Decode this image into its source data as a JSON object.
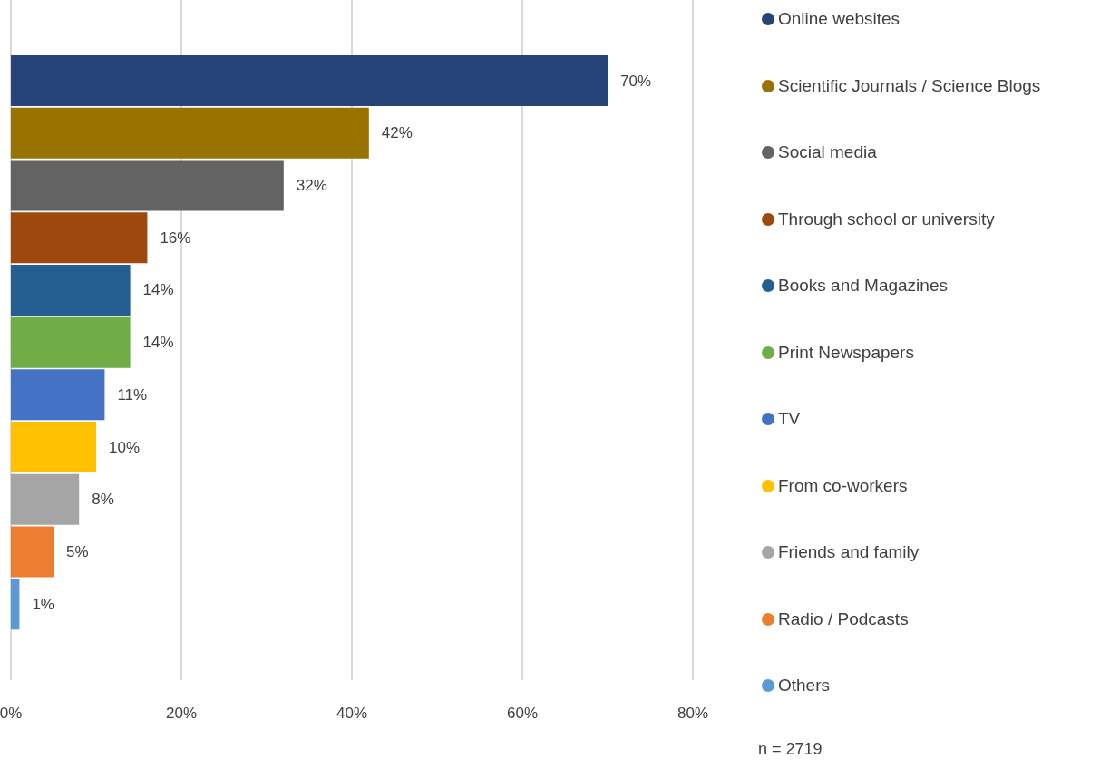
{
  "chart_data": {
    "type": "bar",
    "orientation": "horizontal",
    "stacked": true,
    "categories": [
      null,
      null,
      null,
      null,
      null,
      null,
      null,
      null,
      null,
      null,
      null
    ],
    "series": [
      {
        "name": "Online websites",
        "color": "#264478",
        "values": [
          70,
          null,
          null,
          null,
          null,
          null,
          null,
          null,
          null,
          null,
          null
        ],
        "value_labels": [
          "70%",
          null,
          null,
          null,
          null,
          null,
          null,
          null,
          null,
          null,
          null
        ]
      },
      {
        "name": "Scientific Journals / Science Blogs",
        "color": "#997300",
        "values": [
          null,
          42,
          null,
          null,
          null,
          null,
          null,
          null,
          null,
          null,
          null
        ],
        "value_labels": [
          null,
          "42%",
          null,
          null,
          null,
          null,
          null,
          null,
          null,
          null,
          null
        ]
      },
      {
        "name": "Social media",
        "color": "#636363",
        "values": [
          null,
          null,
          32,
          null,
          null,
          null,
          null,
          null,
          null,
          null,
          null
        ],
        "value_labels": [
          null,
          null,
          "32%",
          null,
          null,
          null,
          null,
          null,
          null,
          null,
          null
        ]
      },
      {
        "name": "Through school or university",
        "color": "#9e480e",
        "values": [
          null,
          null,
          null,
          16,
          null,
          null,
          null,
          null,
          null,
          null,
          null
        ],
        "value_labels": [
          null,
          null,
          null,
          "16%",
          null,
          null,
          null,
          null,
          null,
          null,
          null
        ]
      },
      {
        "name": "Books and Magazines",
        "color": "#255e91",
        "values": [
          null,
          null,
          null,
          null,
          14,
          null,
          null,
          null,
          null,
          null,
          null
        ],
        "value_labels": [
          null,
          null,
          null,
          null,
          "14%",
          null,
          null,
          null,
          null,
          null,
          null
        ]
      },
      {
        "name": "Print Newspapers",
        "color": "#70ad47",
        "values": [
          null,
          null,
          null,
          null,
          null,
          14,
          null,
          null,
          null,
          null,
          null
        ],
        "value_labels": [
          null,
          null,
          null,
          null,
          null,
          "14%",
          null,
          null,
          null,
          null,
          null
        ]
      },
      {
        "name": "TV",
        "color": "#4472c4",
        "values": [
          null,
          null,
          null,
          null,
          null,
          null,
          11,
          null,
          null,
          null,
          null
        ],
        "value_labels": [
          null,
          null,
          null,
          null,
          null,
          null,
          "11%",
          null,
          null,
          null,
          null
        ]
      },
      {
        "name": "From co-workers",
        "color": "#ffc000",
        "values": [
          null,
          null,
          null,
          null,
          null,
          null,
          null,
          10,
          null,
          null,
          null
        ],
        "value_labels": [
          null,
          null,
          null,
          null,
          null,
          null,
          null,
          "10%",
          null,
          null,
          null
        ]
      },
      {
        "name": "Friends and family",
        "color": "#a5a5a5",
        "values": [
          null,
          null,
          null,
          null,
          null,
          null,
          null,
          null,
          8,
          null,
          null
        ],
        "value_labels": [
          null,
          null,
          null,
          null,
          null,
          null,
          null,
          null,
          "8%",
          null,
          null
        ]
      },
      {
        "name": "Radio / Podcasts",
        "color": "#ed7d31",
        "values": [
          null,
          null,
          null,
          null,
          null,
          null,
          null,
          null,
          null,
          5,
          null
        ],
        "value_labels": [
          null,
          null,
          null,
          null,
          null,
          null,
          null,
          null,
          null,
          "5%",
          null
        ]
      },
      {
        "name": "Others",
        "color": "#5b9bd5",
        "values": [
          null,
          null,
          null,
          null,
          null,
          null,
          null,
          null,
          null,
          null,
          1
        ],
        "value_labels": [
          null,
          null,
          null,
          null,
          null,
          null,
          null,
          null,
          null,
          null,
          "1%"
        ]
      }
    ],
    "xlim": [
      0,
      80
    ],
    "xticks": [
      {
        "value": 0,
        "label": "0%"
      },
      {
        "value": 20,
        "label": "20%"
      },
      {
        "value": 40,
        "label": "40%"
      },
      {
        "value": 60,
        "label": "60%"
      },
      {
        "value": 80,
        "label": "80%"
      }
    ],
    "grid": "x",
    "legend": "right",
    "tick_labels": "x",
    "annotations": [
      "n = 2719"
    ]
  }
}
